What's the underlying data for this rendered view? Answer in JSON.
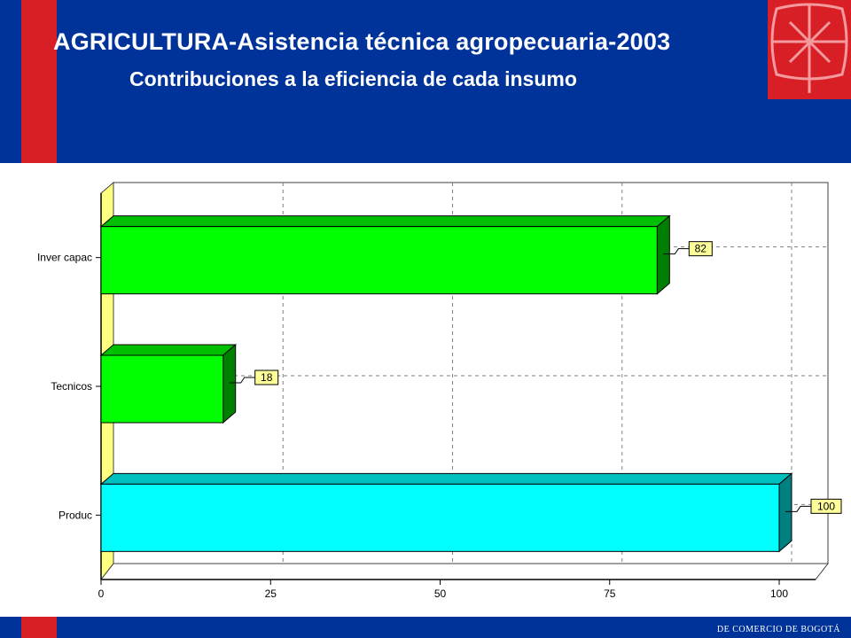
{
  "header": {
    "title": "AGRICULTURA-Asistencia técnica agropecuaria-2003",
    "subtitle": "Contribuciones a la eficiencia de cada insumo"
  },
  "footer": {
    "text": "DE COMERCIO DE BOGOTÁ"
  },
  "colors": {
    "background": "#003399",
    "accent_red": "#d91f26",
    "bar_green": "#00ff00",
    "bar_cyan": "#00ffff",
    "label_box": "#ffff99"
  },
  "chart_data": {
    "type": "bar",
    "orientation": "horizontal",
    "categories": [
      "Inver capac",
      "Tecnicos",
      "Produc"
    ],
    "values": [
      82,
      18,
      100
    ],
    "data_labels": [
      "82",
      "18",
      "100"
    ],
    "bar_colors": [
      "#00ff00",
      "#00ff00",
      "#00ffff"
    ],
    "x_ticks": [
      "0",
      "25",
      "50",
      "75",
      "100"
    ],
    "xlim": [
      0,
      100
    ],
    "grid": true,
    "title": "",
    "xlabel": "",
    "ylabel": ""
  }
}
